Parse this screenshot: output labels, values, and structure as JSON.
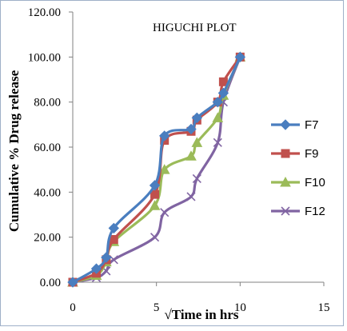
{
  "chart_data": {
    "type": "line",
    "title": "HIGUCHI PLOT",
    "xlabel": "√Time in hrs",
    "ylabel": "Cumulative % Drug release",
    "xlim": [
      0,
      15
    ],
    "ylim": [
      0,
      120
    ],
    "x_ticks": [
      "0",
      "5",
      "10",
      "15"
    ],
    "y_ticks": [
      "0.00",
      "20.00",
      "40.00",
      "60.00",
      "80.00",
      "100.00",
      "120.00"
    ],
    "grid": false,
    "legend_position": "right",
    "x": [
      0,
      1.41,
      2.0,
      2.45,
      4.9,
      5.48,
      7.07,
      7.42,
      8.66,
      9.0,
      10.0
    ],
    "series": [
      {
        "name": "F7",
        "color": "#4a7ebf",
        "marker": "diamond",
        "values": [
          0,
          6,
          11,
          24,
          43,
          65,
          68,
          73,
          80,
          84,
          100
        ]
      },
      {
        "name": "F9",
        "color": "#c0504d",
        "marker": "square",
        "values": [
          0,
          4,
          10,
          19,
          39,
          63,
          67,
          72,
          80,
          89,
          100
        ]
      },
      {
        "name": "F10",
        "color": "#9bbb59",
        "marker": "triangle",
        "values": [
          0,
          3,
          9,
          18,
          34,
          50,
          56,
          62,
          73,
          83,
          100
        ]
      },
      {
        "name": "F12",
        "color": "#8064a2",
        "marker": "x",
        "values": [
          0,
          2,
          5,
          10,
          20,
          31,
          38,
          46,
          62,
          80,
          100
        ]
      }
    ]
  }
}
